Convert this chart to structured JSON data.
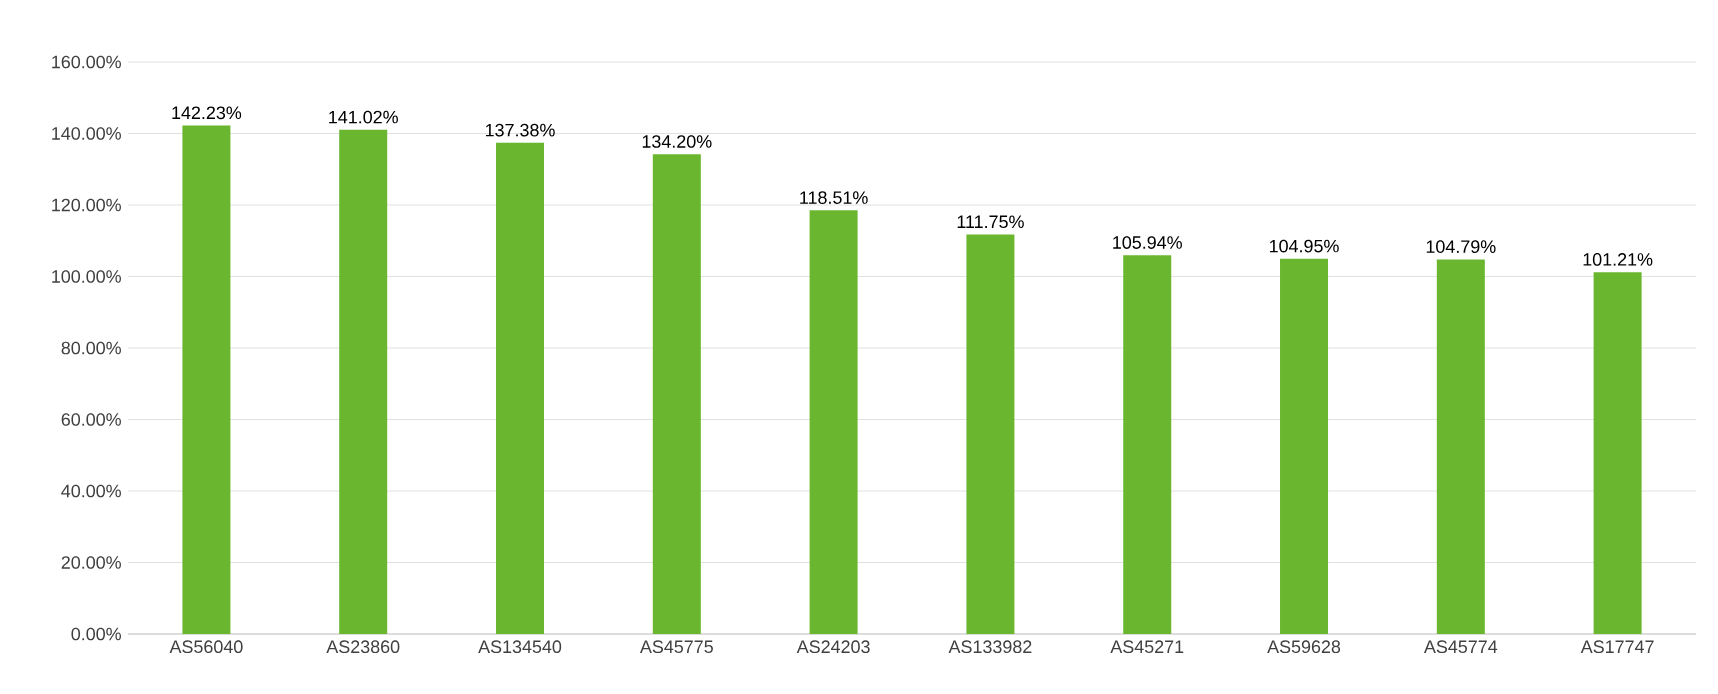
{
  "chart_data": {
    "type": "bar",
    "categories": [
      "AS56040",
      "AS23860",
      "AS134540",
      "AS45775",
      "AS24203",
      "AS133982",
      "AS45271",
      "AS59628",
      "AS45774",
      "AS17747"
    ],
    "values": [
      142.23,
      141.02,
      137.38,
      134.2,
      118.51,
      111.75,
      105.94,
      104.95,
      104.79,
      101.21
    ],
    "value_labels": [
      "142.23%",
      "141.02%",
      "137.38%",
      "134.20%",
      "118.51%",
      "111.75%",
      "105.94%",
      "104.95%",
      "104.79%",
      "101.21%"
    ],
    "color": "#6ab72f",
    "ylim": [
      0,
      160
    ],
    "yticks": [
      {
        "value": 0,
        "label": "0.00%"
      },
      {
        "value": 20,
        "label": "20.00%"
      },
      {
        "value": 40,
        "label": "40.00%"
      },
      {
        "value": 60,
        "label": "60.00%"
      },
      {
        "value": 80,
        "label": "80.00%"
      },
      {
        "value": 100,
        "label": "100.00%"
      },
      {
        "value": 120,
        "label": "120.00%"
      },
      {
        "value": 140,
        "label": "140.00%"
      },
      {
        "value": 160,
        "label": "160.00%"
      }
    ],
    "grid": "y"
  }
}
